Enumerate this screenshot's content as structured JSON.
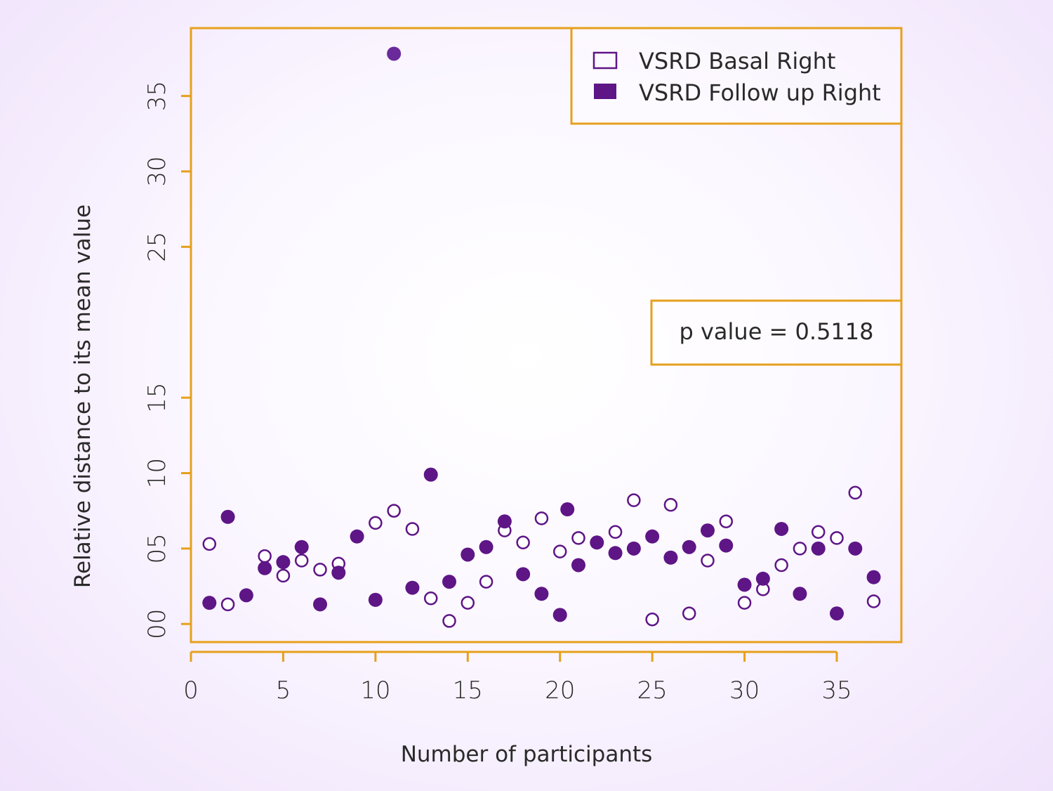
{
  "colors": {
    "frame": "#e6a01c",
    "point": "#5e1586",
    "point_outlier": "#6a2a9a"
  },
  "chart_data": {
    "type": "scatter",
    "xlabel": "Number of participants",
    "ylabel": "Relative distance to its mean value",
    "xlim": [
      0,
      38.5
    ],
    "ylim": [
      -1.2,
      39.5
    ],
    "x_ticks": [
      0,
      5,
      10,
      15,
      20,
      25,
      30,
      35
    ],
    "x_tick_labels": [
      "0",
      "5",
      "10",
      "15",
      "20",
      "25",
      "30",
      "35"
    ],
    "y_ticks": [
      0,
      5,
      10,
      15,
      25,
      30,
      35
    ],
    "y_tick_labels": [
      "00",
      "05",
      "10",
      "15",
      "25",
      "30",
      "35"
    ],
    "grid": false,
    "legend_position": "top-right",
    "annotation": "p value = 0.5118",
    "series": [
      {
        "name": "VSRD Basal Right",
        "marker": "open-circle",
        "x": [
          1,
          2,
          4,
          5,
          6,
          7,
          8,
          10,
          11,
          12,
          13,
          14,
          15,
          16,
          17,
          18,
          19,
          20,
          21,
          23,
          24,
          25,
          26,
          27,
          28,
          29,
          30,
          31,
          32,
          33,
          34,
          35,
          36,
          37
        ],
        "y": [
          5.3,
          1.3,
          4.5,
          3.2,
          4.2,
          3.6,
          4.0,
          6.7,
          7.5,
          6.3,
          1.7,
          0.2,
          1.4,
          2.8,
          6.2,
          5.4,
          7.0,
          4.8,
          5.7,
          6.1,
          8.2,
          0.3,
          7.9,
          0.7,
          4.2,
          6.8,
          1.4,
          2.3,
          3.9,
          5.0,
          6.1,
          5.7,
          8.7,
          1.5
        ]
      },
      {
        "name": "VSRD Follow up Right",
        "marker": "filled-circle",
        "x": [
          1,
          2,
          3,
          4,
          5,
          6,
          7,
          8,
          9,
          10,
          11,
          12,
          13,
          14,
          15,
          16,
          17,
          18,
          19,
          20,
          20.4,
          21,
          22,
          23,
          24,
          25,
          26,
          27,
          28,
          29,
          30,
          31,
          32,
          33,
          34,
          35,
          36,
          37
        ],
        "y": [
          1.4,
          7.1,
          1.9,
          3.7,
          4.1,
          5.1,
          1.3,
          3.4,
          5.8,
          1.6,
          37.8,
          2.4,
          9.9,
          2.8,
          4.6,
          5.1,
          6.8,
          3.3,
          2.0,
          0.6,
          7.6,
          3.9,
          5.4,
          4.7,
          5.0,
          5.8,
          4.4,
          5.1,
          6.2,
          5.2,
          2.6,
          3.0,
          6.3,
          2.0,
          5.0,
          0.7,
          5.0,
          3.1
        ]
      }
    ]
  }
}
